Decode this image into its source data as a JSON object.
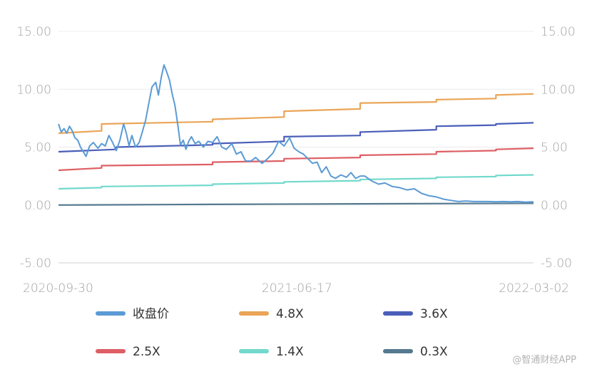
{
  "watermark": "@智通财经APP",
  "chart_data": {
    "type": "line",
    "title": "",
    "xlabel": "",
    "ylabel": "",
    "ylim": [
      -5,
      15
    ],
    "yticks": [
      "15.00",
      "10.00",
      "5.00",
      "0.00",
      "-5.00"
    ],
    "ytick_values": [
      15,
      10,
      5,
      0,
      -5
    ],
    "xticks": [
      "2020-09-30",
      "2021-06-17",
      "2022-03-02"
    ],
    "xtick_values": [
      "2020-09-30",
      "2021-06-17",
      "2022-03-02"
    ],
    "grid": true,
    "legend_position": "bottom",
    "series": [
      {
        "name": "收盘价",
        "color": "#5b9bd5",
        "x": [
          "2020-09-30",
          "2020-10-03",
          "2020-10-06",
          "2020-10-09",
          "2020-10-12",
          "2020-10-15",
          "2020-10-18",
          "2020-10-21",
          "2020-10-24",
          "2020-10-27",
          "2020-10-30",
          "2020-11-03",
          "2020-11-07",
          "2020-11-12",
          "2020-11-16",
          "2020-11-20",
          "2020-11-24",
          "2020-11-28",
          "2020-12-02",
          "2020-12-06",
          "2020-12-10",
          "2020-12-13",
          "2020-12-16",
          "2020-12-19",
          "2020-12-23",
          "2020-12-27",
          "2020-12-30",
          "2021-01-03",
          "2021-01-07",
          "2021-01-10",
          "2021-01-14",
          "2021-01-17",
          "2021-01-20",
          "2021-01-23",
          "2021-01-26",
          "2021-01-29",
          "2021-02-01",
          "2021-02-04",
          "2021-02-07",
          "2021-02-10",
          "2021-02-13",
          "2021-02-16",
          "2021-02-19",
          "2021-02-22",
          "2021-02-26",
          "2021-03-02",
          "2021-03-07",
          "2021-03-12",
          "2021-03-17",
          "2021-03-22",
          "2021-03-27",
          "2021-04-01",
          "2021-04-07",
          "2021-04-12",
          "2021-04-17",
          "2021-04-22",
          "2021-04-28",
          "2021-05-03",
          "2021-05-10",
          "2021-05-16",
          "2021-05-22",
          "2021-05-28",
          "2021-06-03",
          "2021-06-09",
          "2021-06-14",
          "2021-06-19",
          "2021-06-24",
          "2021-06-29",
          "2021-07-04",
          "2021-07-09",
          "2021-07-14",
          "2021-07-19",
          "2021-07-24",
          "2021-07-29",
          "2021-08-04",
          "2021-08-10",
          "2021-08-15",
          "2021-08-20",
          "2021-08-25",
          "2021-08-30",
          "2021-09-06",
          "2021-09-14",
          "2021-09-21",
          "2021-09-29",
          "2021-10-07",
          "2021-10-15",
          "2021-10-23",
          "2021-10-31",
          "2021-11-08",
          "2021-11-16",
          "2021-11-24",
          "2021-12-02",
          "2021-12-10",
          "2021-12-18",
          "2021-12-27",
          "2022-01-04",
          "2022-01-12",
          "2022-01-20",
          "2022-01-28",
          "2022-02-05",
          "2022-02-13",
          "2022-02-21",
          "2022-03-02"
        ],
        "values": [
          7.0,
          6.3,
          6.6,
          6.2,
          6.8,
          6.4,
          5.8,
          5.6,
          5.0,
          4.6,
          4.2,
          5.1,
          5.4,
          4.9,
          5.3,
          5.1,
          6.0,
          5.4,
          4.7,
          5.6,
          7.0,
          6.2,
          5.1,
          6.0,
          5.0,
          5.4,
          6.2,
          7.3,
          9.0,
          10.2,
          10.6,
          9.5,
          11.0,
          12.1,
          11.5,
          10.8,
          9.6,
          8.6,
          7.0,
          5.2,
          5.6,
          4.8,
          5.5,
          5.9,
          5.3,
          5.5,
          5.0,
          5.5,
          5.4,
          5.9,
          5.0,
          4.8,
          5.3,
          4.4,
          4.6,
          3.8,
          3.8,
          4.1,
          3.6,
          4.0,
          4.5,
          5.5,
          5.1,
          5.8,
          4.9,
          4.6,
          4.4,
          4.0,
          3.6,
          3.7,
          2.8,
          3.3,
          2.5,
          2.3,
          2.6,
          2.4,
          2.8,
          2.3,
          2.5,
          2.5,
          2.1,
          1.8,
          1.9,
          1.6,
          1.5,
          1.3,
          1.4,
          1.0,
          0.8,
          0.7,
          0.5,
          0.4,
          0.3,
          0.35,
          0.3,
          0.3,
          0.3,
          0.28,
          0.3,
          0.28,
          0.3,
          0.25,
          0.28
        ]
      },
      {
        "name": "4.8X",
        "color": "#eaa558",
        "x": [
          "2020-09-30",
          "2020-11-16",
          "2020-11-16",
          "2021-03-17",
          "2021-03-17",
          "2021-06-03",
          "2021-06-03",
          "2021-08-25",
          "2021-08-25",
          "2021-11-16",
          "2021-11-16",
          "2022-01-20",
          "2022-01-20",
          "2022-03-02"
        ],
        "values": [
          6.2,
          6.4,
          7.0,
          7.2,
          7.4,
          7.6,
          8.1,
          8.3,
          8.8,
          8.9,
          9.1,
          9.2,
          9.5,
          9.6
        ]
      },
      {
        "name": "3.6X",
        "color": "#4a5eb8",
        "x": [
          "2020-09-30",
          "2020-12-02",
          "2020-12-02",
          "2021-03-17",
          "2021-03-17",
          "2021-06-03",
          "2021-06-03",
          "2021-08-25",
          "2021-08-25",
          "2021-11-16",
          "2021-11-16",
          "2022-01-20",
          "2022-01-20",
          "2022-03-02"
        ],
        "values": [
          4.6,
          4.8,
          5.0,
          5.2,
          5.3,
          5.5,
          5.9,
          6.0,
          6.3,
          6.5,
          6.8,
          6.9,
          7.0,
          7.1
        ]
      },
      {
        "name": "2.5X",
        "color": "#de5f64",
        "x": [
          "2020-09-30",
          "2020-11-16",
          "2020-11-16",
          "2021-03-17",
          "2021-03-17",
          "2021-06-03",
          "2021-06-03",
          "2021-08-25",
          "2021-08-25",
          "2021-11-16",
          "2021-11-16",
          "2022-01-20",
          "2022-01-20",
          "2022-03-02"
        ],
        "values": [
          3.0,
          3.2,
          3.4,
          3.5,
          3.7,
          3.8,
          4.0,
          4.1,
          4.3,
          4.4,
          4.6,
          4.7,
          4.8,
          4.9
        ]
      },
      {
        "name": "1.4X",
        "color": "#72d9cc",
        "x": [
          "2020-09-30",
          "2020-11-16",
          "2020-11-16",
          "2021-03-17",
          "2021-03-17",
          "2021-06-03",
          "2021-06-03",
          "2021-08-25",
          "2021-08-25",
          "2021-11-16",
          "2021-11-16",
          "2022-01-20",
          "2022-01-20",
          "2022-03-02"
        ],
        "values": [
          1.4,
          1.5,
          1.6,
          1.7,
          1.8,
          1.9,
          2.0,
          2.1,
          2.2,
          2.3,
          2.4,
          2.45,
          2.55,
          2.6
        ]
      },
      {
        "name": "0.3X",
        "color": "#55798f",
        "x": [
          "2020-09-30",
          "2021-03-17",
          "2021-08-25",
          "2022-03-02"
        ],
        "values": [
          0.0,
          0.05,
          0.1,
          0.15
        ]
      }
    ]
  }
}
